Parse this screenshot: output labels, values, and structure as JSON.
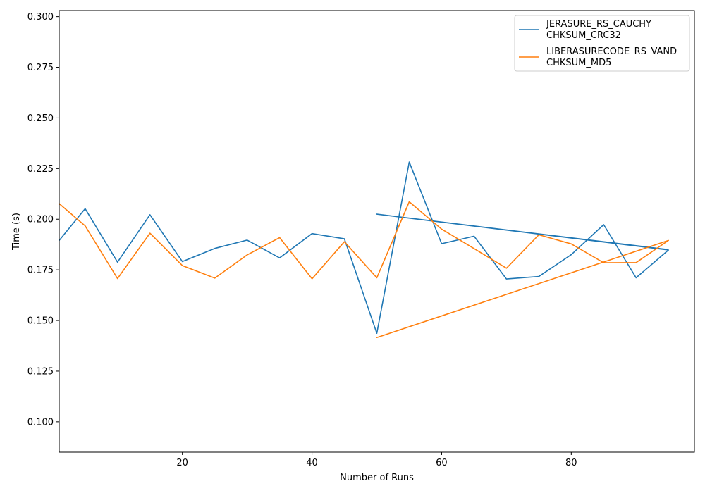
{
  "chart_data": {
    "type": "line",
    "title": "",
    "xlabel": "Number of Runs",
    "ylabel": "Time (s)",
    "xlim": [
      1,
      99
    ],
    "ylim": [
      0.085,
      0.303
    ],
    "x_ticks": [
      20,
      40,
      60,
      80
    ],
    "x_tick_labels": [
      "20",
      "40",
      "60",
      "80"
    ],
    "y_ticks": [
      0.1,
      0.125,
      0.15,
      0.175,
      0.2,
      0.225,
      0.25,
      0.275,
      0.3
    ],
    "y_tick_labels": [
      "0.100",
      "0.125",
      "0.150",
      "0.175",
      "0.200",
      "0.225",
      "0.250",
      "0.275",
      "0.300"
    ],
    "grid": false,
    "legend_position": "top-right",
    "series": [
      {
        "name_lines": [
          "JERASURE_RS_CAUCHY",
          "CHKSUM_CRC32"
        ],
        "color": "#1f77b4",
        "x": [
          1,
          5,
          10,
          15,
          20,
          25,
          30,
          35,
          40,
          45,
          50,
          55,
          60,
          65,
          70,
          75,
          80,
          85,
          90,
          95,
          50,
          95
        ],
        "y": [
          0.1895,
          0.2052,
          0.1788,
          0.2022,
          0.1791,
          0.1856,
          0.1897,
          0.1809,
          0.1929,
          0.1903,
          0.1437,
          0.2282,
          0.1879,
          0.1916,
          0.1705,
          0.1717,
          0.1825,
          0.1973,
          0.1711,
          0.1848,
          0.2025,
          0.185
        ]
      },
      {
        "name_lines": [
          "LIBERASURECODE_RS_VAND",
          "CHKSUM_MD5"
        ],
        "color": "#ff7f0e",
        "x": [
          1,
          5,
          10,
          15,
          20,
          25,
          30,
          35,
          40,
          45,
          50,
          55,
          60,
          65,
          70,
          75,
          80,
          85,
          90,
          95,
          50,
          95
        ],
        "y": [
          0.2077,
          0.1967,
          0.1707,
          0.1931,
          0.1771,
          0.1709,
          0.1824,
          0.1909,
          0.1706,
          0.1889,
          0.1711,
          0.2086,
          0.1951,
          0.1855,
          0.1758,
          0.1923,
          0.1878,
          0.1785,
          0.1786,
          0.1895,
          0.1416,
          0.1895
        ]
      }
    ]
  }
}
